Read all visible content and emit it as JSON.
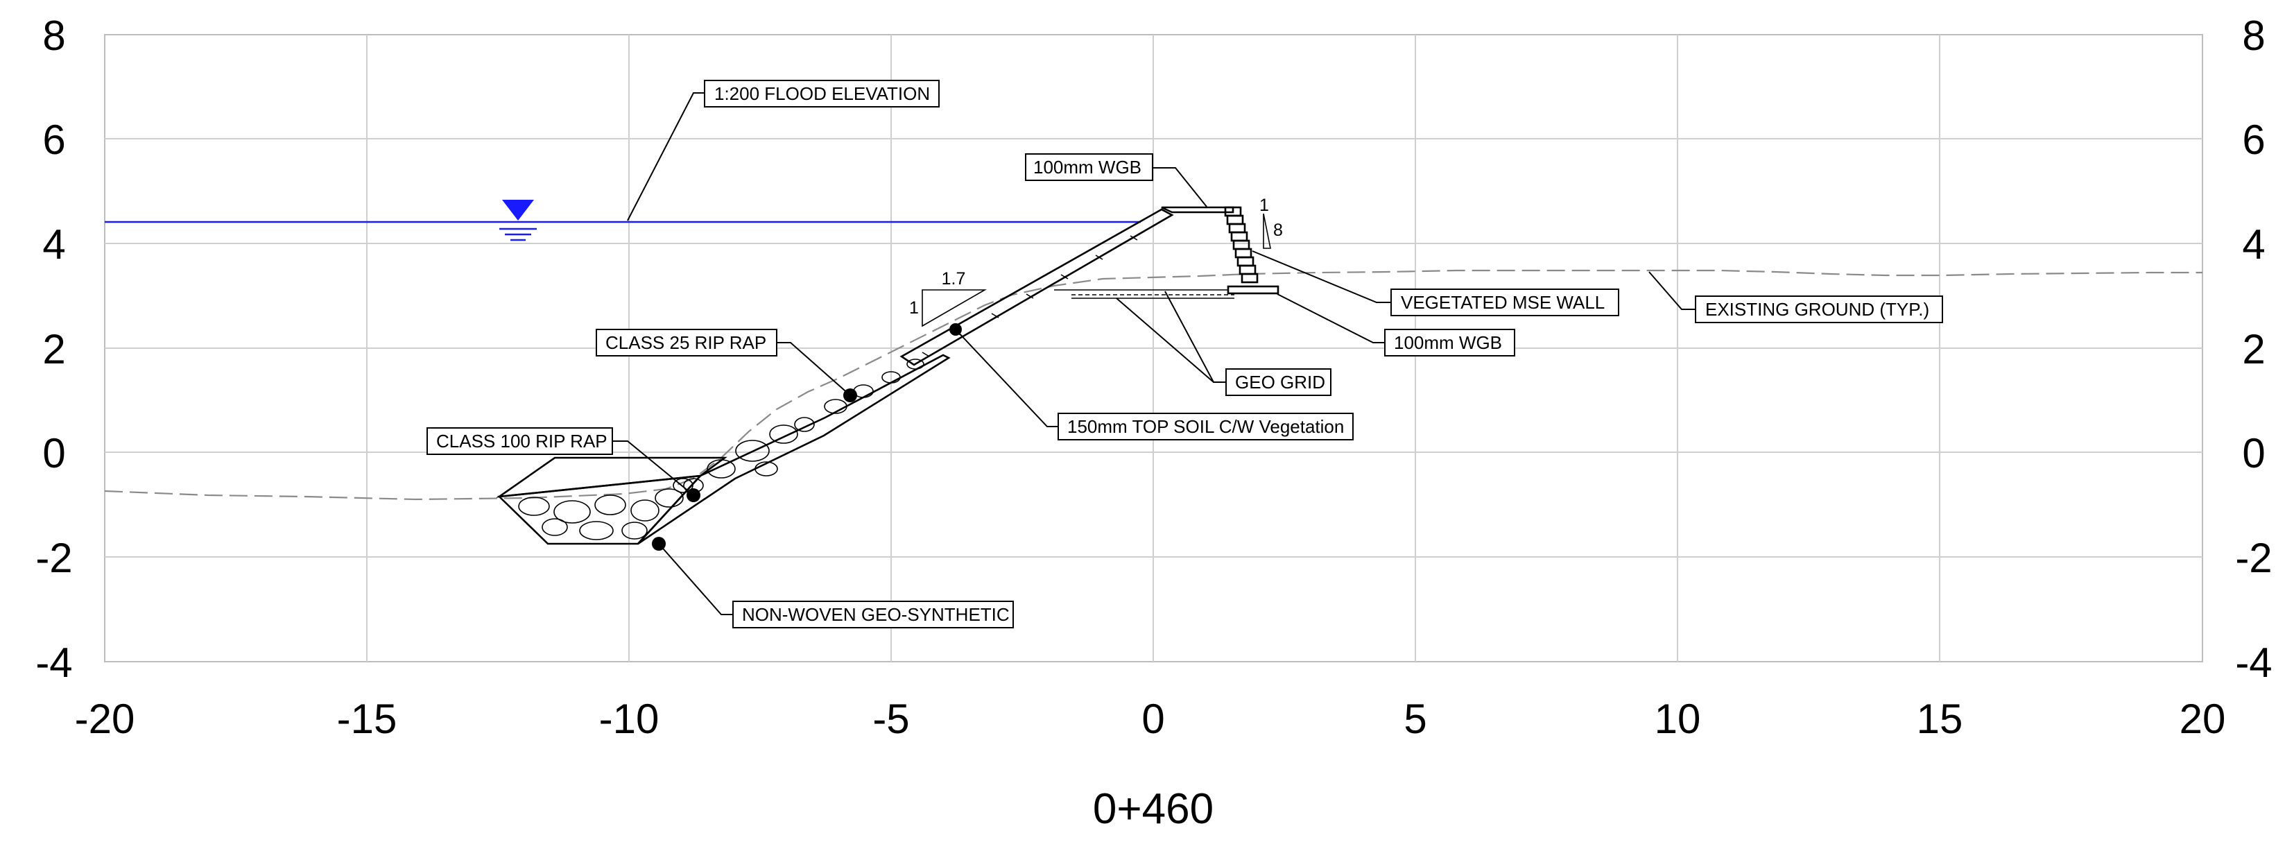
{
  "drawing": {
    "station": "0+460",
    "colors": {
      "water": "#1a1aff",
      "ground": "#8a8a8a",
      "grid": "#cfcfcf",
      "ink": "#000000"
    },
    "axes": {
      "x_range": [
        -20,
        20
      ],
      "y_range": [
        -4,
        8
      ],
      "x_ticks": [
        "-20",
        "-15",
        "-10",
        "-5",
        "0",
        "5",
        "10",
        "15",
        "20"
      ],
      "y_ticks_left": [
        "8",
        "6",
        "4",
        "2",
        "0",
        "-2",
        "-4"
      ],
      "y_ticks_right": [
        "8",
        "6",
        "4",
        "2",
        "0",
        "-2",
        "-4"
      ],
      "grid": true
    },
    "slope_triangle": {
      "run": "1.7",
      "rise": "1"
    },
    "wall_batter": {
      "horizontal": "1",
      "vertical": "8"
    },
    "water_symbol": "water-level-triangle-icon",
    "callouts": {
      "flood": "1:200 FLOOD ELEVATION",
      "wgb_top": "100mm WGB",
      "mse_wall": "VEGETATED MSE WALL",
      "existing_ground": "EXISTING GROUND (TYP.)",
      "wgb_bottom": "100mm WGB",
      "geo_grid": "GEO GRID",
      "topsoil": "150mm TOP SOIL C/W Vegetation",
      "riprap25": "CLASS 25 RIP RAP",
      "riprap100": "CLASS 100 RIP RAP",
      "geosynthetic": "NON-WOVEN GEO-SYNTHETIC"
    }
  }
}
